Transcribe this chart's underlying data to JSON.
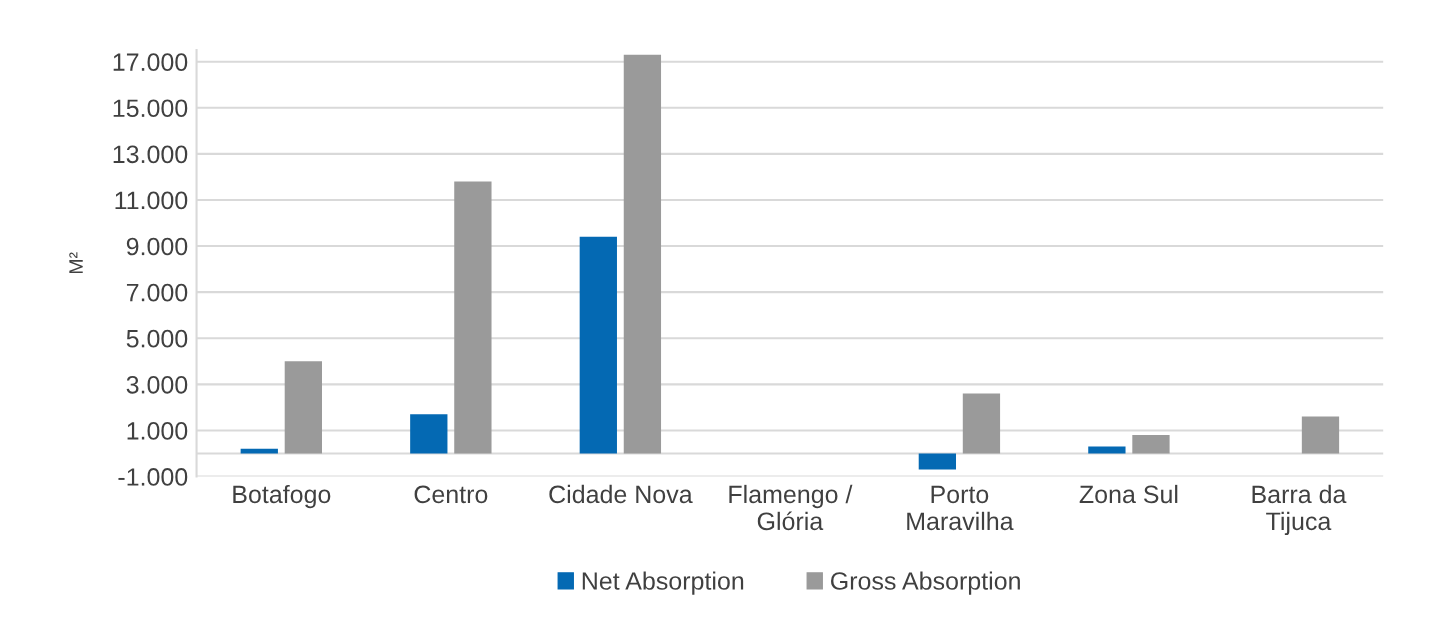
{
  "chart_data": {
    "type": "bar",
    "ylabel": "M²",
    "categories": [
      "Botafogo",
      "Centro",
      "Cidade Nova",
      "Flamengo /\nGlória",
      "Porto\nMaravilha",
      "Zona Sul",
      "Barra da\nTijuca"
    ],
    "series": [
      {
        "name": "Net Absorption",
        "color": "#0469b3",
        "values": [
          200,
          1700,
          9400,
          null,
          -700,
          300,
          null
        ]
      },
      {
        "name": "Gross Absorption",
        "color": "#9a9a9a",
        "values": [
          4000,
          11800,
          17300,
          null,
          2600,
          800,
          1600
        ]
      }
    ],
    "ylim": [
      -1000,
      17500
    ],
    "yticks": [
      {
        "value": -1000,
        "label": "-1.000"
      },
      {
        "value": 1000,
        "label": "1.000"
      },
      {
        "value": 3000,
        "label": "3.000"
      },
      {
        "value": 5000,
        "label": "5.000"
      },
      {
        "value": 7000,
        "label": "7.000"
      },
      {
        "value": 9000,
        "label": "9.000"
      },
      {
        "value": 11000,
        "label": "11.000"
      },
      {
        "value": 13000,
        "label": "13.000"
      },
      {
        "value": 15000,
        "label": "15.000"
      },
      {
        "value": 17000,
        "label": "17.000"
      }
    ],
    "grid": "y",
    "legend": "bottom"
  }
}
